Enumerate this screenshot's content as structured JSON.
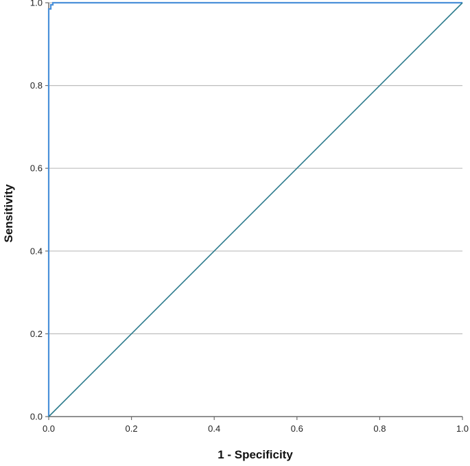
{
  "chart_data": {
    "type": "line",
    "title": "",
    "xlabel": "1 - Specificity",
    "ylabel": "Sensitivity",
    "xlim": [
      0,
      1
    ],
    "ylim": [
      0,
      1
    ],
    "x_ticks": [
      0.0,
      0.2,
      0.4,
      0.6,
      0.8,
      1.0
    ],
    "y_ticks": [
      0.0,
      0.2,
      0.4,
      0.6,
      0.8,
      1.0
    ],
    "x_tick_labels": [
      "0.0",
      "0.2",
      "0.4",
      "0.6",
      "0.8",
      "1.0"
    ],
    "y_tick_labels": [
      "0.0",
      "0.2",
      "0.4",
      "0.6",
      "0.8",
      "1.0"
    ],
    "grid": "horizontal",
    "legend": "none",
    "series": [
      {
        "color": "#4a90d9",
        "step": true,
        "points": [
          [
            0,
            0
          ],
          [
            0,
            0.985
          ],
          [
            0.005,
            0.985
          ],
          [
            0.005,
            0.995
          ],
          [
            0.01,
            0.995
          ],
          [
            0.01,
            1.0
          ],
          [
            1.0,
            1.0
          ]
        ]
      },
      {
        "color": "#2b7a8c",
        "step": false,
        "points": [
          [
            0,
            0
          ],
          [
            1,
            1
          ]
        ]
      }
    ]
  }
}
